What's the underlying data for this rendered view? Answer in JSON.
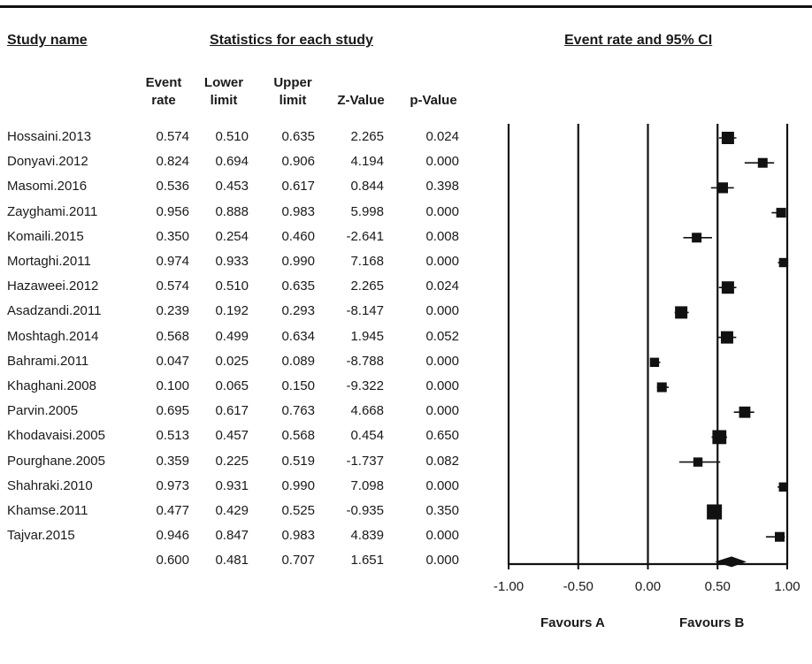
{
  "headers": {
    "study_name": "Study name",
    "statistics": "Statistics for each study",
    "ci": "Event rate and 95% CI"
  },
  "columns": {
    "event_rate": [
      "Event",
      "rate"
    ],
    "lower_limit": [
      "Lower",
      "limit"
    ],
    "upper_limit": [
      "Upper",
      "limit"
    ],
    "z_value": "Z-Value",
    "p_value": "p-Value"
  },
  "rows": [
    {
      "study": "Hossaini.2013",
      "event": "0.574",
      "lower": "0.510",
      "upper": "0.635",
      "z": "2.265",
      "p": "0.024"
    },
    {
      "study": "Donyavi.2012",
      "event": "0.824",
      "lower": "0.694",
      "upper": "0.906",
      "z": "4.194",
      "p": "0.000"
    },
    {
      "study": "Masomi.2016",
      "event": "0.536",
      "lower": "0.453",
      "upper": "0.617",
      "z": "0.844",
      "p": "0.398"
    },
    {
      "study": "Zayghami.2011",
      "event": "0.956",
      "lower": "0.888",
      "upper": "0.983",
      "z": "5.998",
      "p": "0.000"
    },
    {
      "study": "Komaili.2015",
      "event": "0.350",
      "lower": "0.254",
      "upper": "0.460",
      "z": "-2.641",
      "p": "0.008"
    },
    {
      "study": "Mortaghi.2011",
      "event": "0.974",
      "lower": "0.933",
      "upper": "0.990",
      "z": "7.168",
      "p": "0.000"
    },
    {
      "study": "Hazaweei.2012",
      "event": "0.574",
      "lower": "0.510",
      "upper": "0.635",
      "z": "2.265",
      "p": "0.024"
    },
    {
      "study": "Asadzandi.2011",
      "event": "0.239",
      "lower": "0.192",
      "upper": "0.293",
      "z": "-8.147",
      "p": "0.000"
    },
    {
      "study": "Moshtagh.2014",
      "event": "0.568",
      "lower": "0.499",
      "upper": "0.634",
      "z": "1.945",
      "p": "0.052"
    },
    {
      "study": "Bahrami.2011",
      "event": "0.047",
      "lower": "0.025",
      "upper": "0.089",
      "z": "-8.788",
      "p": "0.000"
    },
    {
      "study": "Khaghani.2008",
      "event": "0.100",
      "lower": "0.065",
      "upper": "0.150",
      "z": "-9.322",
      "p": "0.000"
    },
    {
      "study": "Parvin.2005",
      "event": "0.695",
      "lower": "0.617",
      "upper": "0.763",
      "z": "4.668",
      "p": "0.000"
    },
    {
      "study": "Khodavaisi.2005",
      "event": "0.513",
      "lower": "0.457",
      "upper": "0.568",
      "z": "0.454",
      "p": "0.650"
    },
    {
      "study": "Pourghane.2005",
      "event": "0.359",
      "lower": "0.225",
      "upper": "0.519",
      "z": "-1.737",
      "p": "0.082"
    },
    {
      "study": "Shahraki.2010",
      "event": "0.973",
      "lower": "0.931",
      "upper": "0.990",
      "z": "7.098",
      "p": "0.000"
    },
    {
      "study": "Khamse.2011",
      "event": "0.477",
      "lower": "0.429",
      "upper": "0.525",
      "z": "-0.935",
      "p": "0.350"
    },
    {
      "study": "Tajvar.2015",
      "event": "0.946",
      "lower": "0.847",
      "upper": "0.983",
      "z": "4.839",
      "p": "0.000"
    }
  ],
  "pooled": {
    "event": "0.600",
    "lower": "0.481",
    "upper": "0.707",
    "z": "1.651",
    "p": "0.000"
  },
  "favours": {
    "a": "Favours A",
    "b": "Favours B"
  },
  "chart_data": {
    "type": "forest",
    "xlim": [
      -1.0,
      1.0
    ],
    "ticks": [
      "-1.00",
      "-0.50",
      "0.00",
      "0.50",
      "1.00"
    ],
    "tick_values": [
      -1.0,
      -0.5,
      0.0,
      0.5,
      1.0
    ],
    "series": [
      {
        "study": "Hossaini.2013",
        "value": 0.574,
        "lower": 0.51,
        "upper": 0.635,
        "weight": 3
      },
      {
        "study": "Donyavi.2012",
        "value": 0.824,
        "lower": 0.694,
        "upper": 0.906,
        "weight": 2
      },
      {
        "study": "Masomi.2016",
        "value": 0.536,
        "lower": 0.453,
        "upper": 0.617,
        "weight": 2.4
      },
      {
        "study": "Zayghami.2011",
        "value": 0.956,
        "lower": 0.888,
        "upper": 0.983,
        "weight": 2
      },
      {
        "study": "Komaili.2015",
        "value": 0.35,
        "lower": 0.254,
        "upper": 0.46,
        "weight": 2
      },
      {
        "study": "Mortaghi.2011",
        "value": 0.974,
        "lower": 0.933,
        "upper": 0.99,
        "weight": 1.8
      },
      {
        "study": "Hazaweei.2012",
        "value": 0.574,
        "lower": 0.51,
        "upper": 0.635,
        "weight": 3
      },
      {
        "study": "Asadzandi.2011",
        "value": 0.239,
        "lower": 0.192,
        "upper": 0.293,
        "weight": 3
      },
      {
        "study": "Moshtagh.2014",
        "value": 0.568,
        "lower": 0.499,
        "upper": 0.634,
        "weight": 3
      },
      {
        "study": "Bahrami.2011",
        "value": 0.047,
        "lower": 0.025,
        "upper": 0.089,
        "weight": 1.8
      },
      {
        "study": "Khaghani.2008",
        "value": 0.1,
        "lower": 0.065,
        "upper": 0.15,
        "weight": 2
      },
      {
        "study": "Parvin.2005",
        "value": 0.695,
        "lower": 0.617,
        "upper": 0.763,
        "weight": 2.6
      },
      {
        "study": "Khodavaisi.2005",
        "value": 0.513,
        "lower": 0.457,
        "upper": 0.568,
        "weight": 3.6
      },
      {
        "study": "Pourghane.2005",
        "value": 0.359,
        "lower": 0.225,
        "upper": 0.519,
        "weight": 1.8
      },
      {
        "study": "Shahraki.2010",
        "value": 0.973,
        "lower": 0.931,
        "upper": 0.99,
        "weight": 1.8
      },
      {
        "study": "Khamse.2011",
        "value": 0.477,
        "lower": 0.429,
        "upper": 0.525,
        "weight": 4
      },
      {
        "study": "Tajvar.2015",
        "value": 0.946,
        "lower": 0.847,
        "upper": 0.983,
        "weight": 2
      }
    ],
    "pooled": {
      "value": 0.6,
      "lower": 0.481,
      "upper": 0.707
    }
  }
}
